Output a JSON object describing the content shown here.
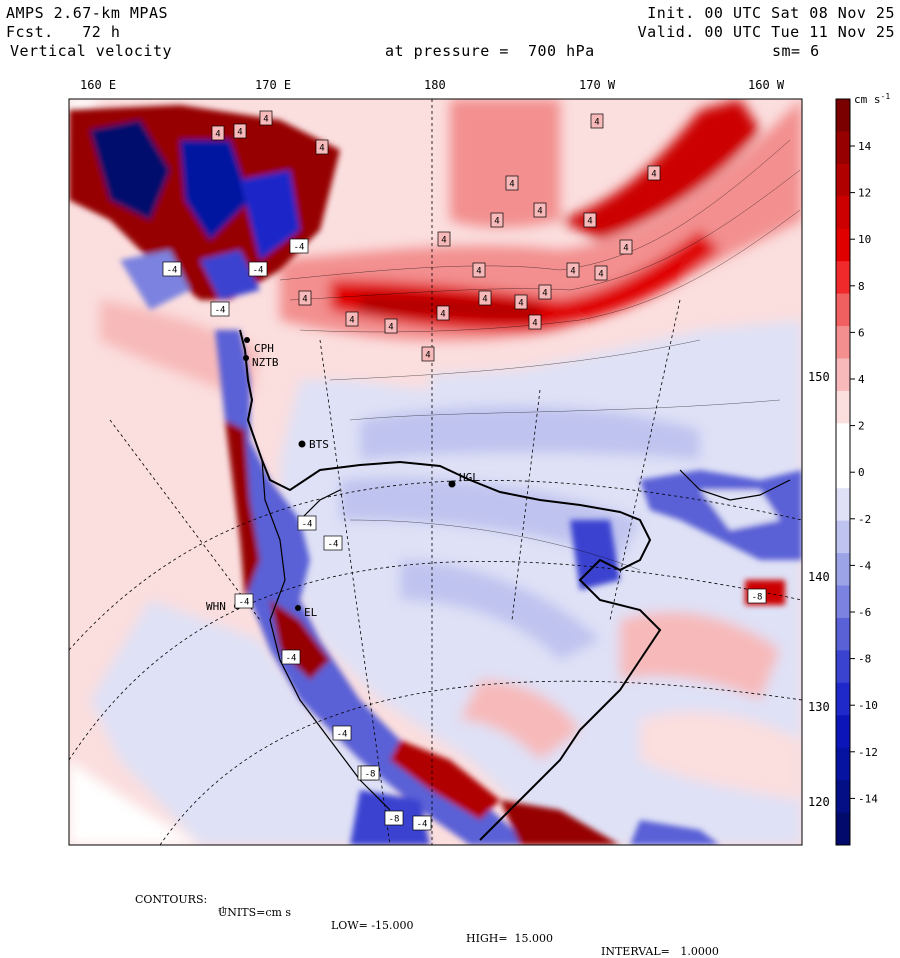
{
  "header": {
    "model": "AMPS 2.67-km MPAS",
    "fcst_label": "Fcst.",
    "fcst_value": "72 h",
    "field": "Vertical velocity",
    "init": "Init. 00 UTC Sat 08 Nov 25",
    "valid": "Valid. 00 UTC Tue 11 Nov 25",
    "pressure": "at pressure =  700 hPa",
    "smooth": "sm= 6"
  },
  "longitude_labels": [
    "160 E",
    "170 E",
    "180",
    "170 W",
    "160 W"
  ],
  "latitude_labels": [
    "150 W",
    "140 W",
    "130 W",
    "120 W"
  ],
  "colorbar": {
    "units": "cm s",
    "units_exp": "-1",
    "tick_labels": [
      "14",
      "12",
      "10",
      "8",
      "6",
      "4",
      "2",
      "0",
      "-2",
      "-4",
      "-6",
      "-8",
      "-10",
      "-12",
      "-14"
    ],
    "colors": [
      "#7a0000",
      "#960000",
      "#b00000",
      "#cc0000",
      "#e00000",
      "#f02a2a",
      "#f06060",
      "#f38f8f",
      "#f7b9b9",
      "#fbdede",
      "#ffffff",
      "#ffffff",
      "#dfe1f6",
      "#bfc3ef",
      "#9da3e7",
      "#7c82df",
      "#5a61d6",
      "#3a42d0",
      "#1f28c8",
      "#0c16b8",
      "#0612a0",
      "#040f86",
      "#020b6c"
    ]
  },
  "stations": [
    "CPH",
    "NZTB",
    "BTS",
    "HGL",
    "WHN",
    "EL"
  ],
  "contour_labels": [
    "4",
    "4",
    "4",
    "4",
    "4",
    "4",
    "4",
    "4",
    "4",
    "4",
    "4",
    "4",
    "4",
    "4",
    "4",
    "4",
    "4",
    "4",
    "4",
    "4",
    "4",
    "4",
    "4",
    "4",
    "-4",
    "-4",
    "-4",
    "-4",
    "-4",
    "-4",
    "-4",
    "-4",
    "-4",
    "-4",
    "-4",
    "-8",
    "-8",
    "-8"
  ],
  "footer": {
    "contours_label": "CONTOURS:",
    "units_label": "UNITS=cm s",
    "units_exp": "-1",
    "low": "LOW= -15.000",
    "high": "HIGH=  15.000",
    "interval": "INTERVAL=   1.0000"
  }
}
